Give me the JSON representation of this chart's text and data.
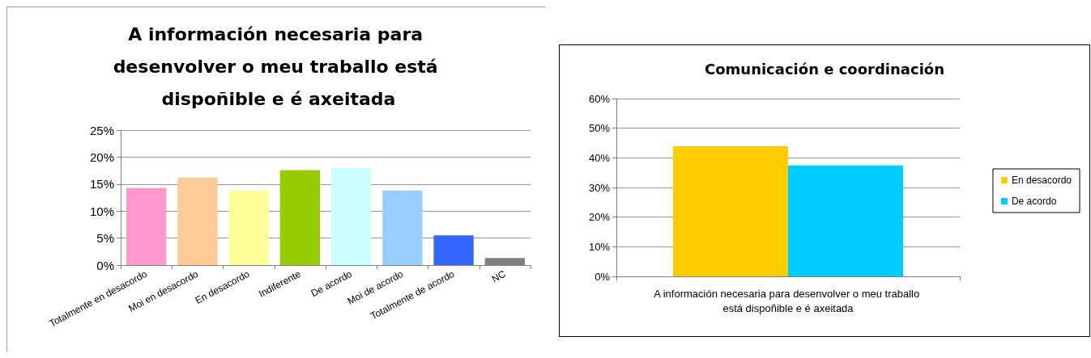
{
  "chart_data": [
    {
      "type": "bar",
      "title": "A información necesaria para desenvolver o meu traballo está dispoñible e é axeitada",
      "categories": [
        "Totalmente en desacordo",
        "Moi en desacordo",
        "En desacordo",
        "Indiferente",
        "De acordo",
        "Moi de acordo",
        "Totalmente de acordo",
        "NC"
      ],
      "values": [
        14.3,
        16.2,
        13.8,
        17.6,
        18.0,
        13.8,
        5.5,
        1.3
      ],
      "colors": [
        "#ff99cc",
        "#ffcc99",
        "#ffff99",
        "#99cc00",
        "#ccffff",
        "#99ccff",
        "#3366ff",
        "#808080"
      ],
      "ylim": [
        0,
        25
      ],
      "yticks": [
        {
          "value": 0,
          "label": "0%"
        },
        {
          "value": 5,
          "label": "5%"
        },
        {
          "value": 10,
          "label": "10%"
        },
        {
          "value": 15,
          "label": "15%"
        },
        {
          "value": 20,
          "label": "20%"
        },
        {
          "value": 25,
          "label": "25%"
        }
      ],
      "grid": "y",
      "legend": false
    },
    {
      "type": "bar",
      "title": "Comunicación e coordinación",
      "categories": [
        "A información necesaria para desenvolver o meu traballo está dispoñible e é axeitada"
      ],
      "series": [
        {
          "name": "En desacordo",
          "color": "#ffcc00",
          "values": [
            43.9
          ]
        },
        {
          "name": "De acordo",
          "color": "#00ccff",
          "values": [
            37.4
          ]
        }
      ],
      "ylim": [
        0,
        60
      ],
      "yticks": [
        {
          "value": 0,
          "label": "0%"
        },
        {
          "value": 10,
          "label": "10%"
        },
        {
          "value": 20,
          "label": "20%"
        },
        {
          "value": 30,
          "label": "30%"
        },
        {
          "value": 40,
          "label": "40%"
        },
        {
          "value": 50,
          "label": "50%"
        },
        {
          "value": 60,
          "label": "60%"
        }
      ],
      "grid": "y",
      "legend": "right"
    }
  ]
}
